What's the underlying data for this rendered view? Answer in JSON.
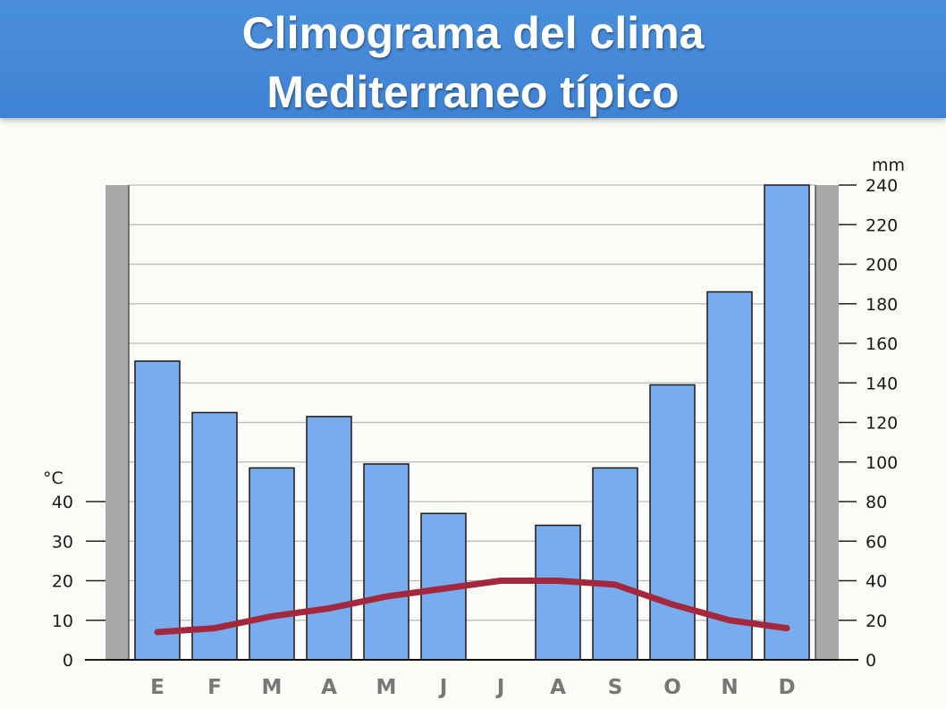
{
  "header": {
    "title_line1": "Climograma del clima",
    "title_line2": "Mediterraneo típico"
  },
  "colors": {
    "header_bg": "#4a8fdc",
    "bar_fill": "#79acec",
    "bar_stroke": "#1a1a1a",
    "temp_line": "#a3283e",
    "side_band": "#a9a9a9"
  },
  "chart_data": {
    "type": "bar",
    "categories": [
      "E",
      "F",
      "M",
      "A",
      "M",
      "J",
      "J",
      "A",
      "S",
      "O",
      "N",
      "D"
    ],
    "series": [
      {
        "type": "bar",
        "axis": "right",
        "values": [
          151,
          125,
          97,
          123,
          99,
          74,
          0,
          68,
          97,
          139,
          186,
          240
        ]
      },
      {
        "type": "line",
        "axis": "left",
        "values": [
          7,
          8,
          11,
          13,
          16,
          18,
          20,
          20,
          19,
          14,
          10,
          8
        ]
      }
    ],
    "y_left": {
      "label": "°C",
      "ticks": [
        0,
        10,
        20,
        30,
        40
      ],
      "range": [
        0,
        40
      ]
    },
    "y_right": {
      "label": "mm",
      "ticks": [
        0,
        20,
        40,
        60,
        80,
        100,
        120,
        140,
        160,
        180,
        200,
        220,
        240
      ],
      "range": [
        0,
        240
      ]
    },
    "grid": true
  }
}
